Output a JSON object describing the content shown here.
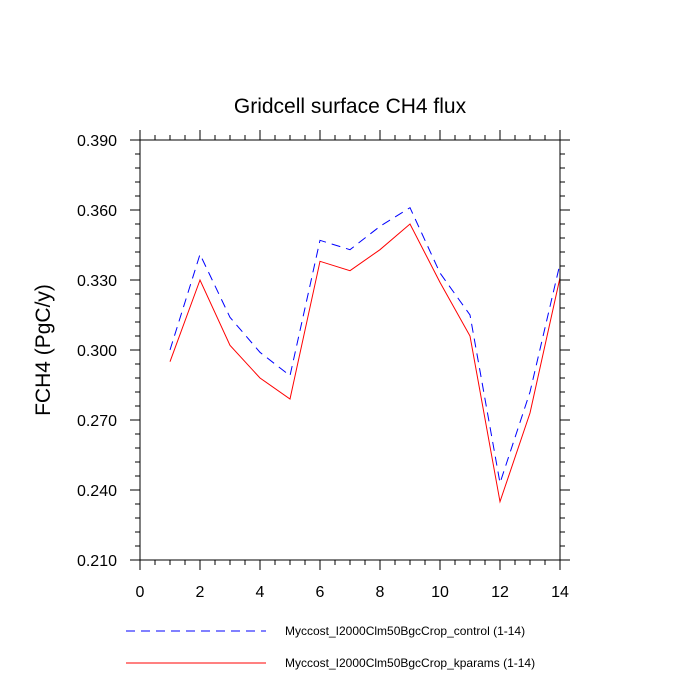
{
  "chart_data": {
    "type": "line",
    "title": "Gridcell surface CH4 flux",
    "xlabel": "",
    "ylabel": "FCH4  (PgC/y)",
    "xlim": [
      0,
      14
    ],
    "ylim": [
      0.21,
      0.39
    ],
    "x_ticks": [
      "0",
      "2",
      "4",
      "6",
      "8",
      "10",
      "12",
      "14"
    ],
    "y_ticks": [
      "0.210",
      "0.240",
      "0.270",
      "0.300",
      "0.330",
      "0.360",
      "0.390"
    ],
    "x": [
      1,
      2,
      3,
      4,
      5,
      6,
      7,
      8,
      9,
      10,
      11,
      12,
      13,
      14
    ],
    "series": [
      {
        "name": "Myccost_I2000Clm50BgcCrop_control (1-14)",
        "color": "#0000ff",
        "dash": "dashed",
        "values": [
          0.3,
          0.341,
          0.314,
          0.299,
          0.289,
          0.347,
          0.343,
          0.353,
          0.361,
          0.333,
          0.315,
          0.243,
          0.282,
          0.337
        ]
      },
      {
        "name": "Myccost_I2000Clm50BgcCrop_kparams (1-14)",
        "color": "#ff0000",
        "dash": "solid",
        "values": [
          0.295,
          0.33,
          0.302,
          0.288,
          0.279,
          0.338,
          0.334,
          0.343,
          0.354,
          0.329,
          0.306,
          0.235,
          0.273,
          0.331
        ]
      }
    ],
    "grid": false,
    "legend_position": "bottom"
  }
}
